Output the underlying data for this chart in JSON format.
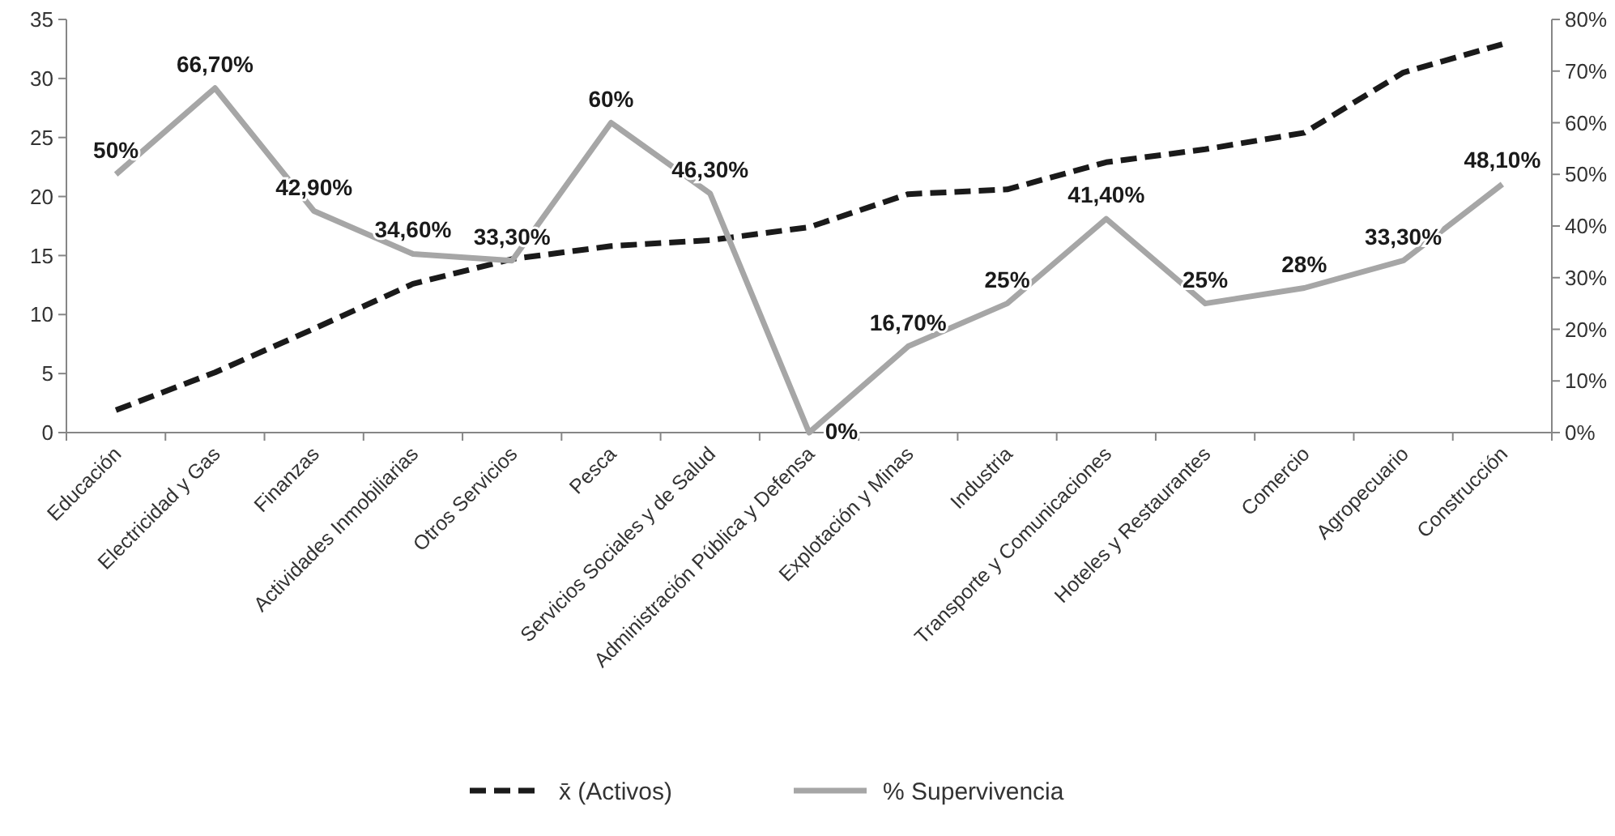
{
  "chart_data": {
    "type": "line",
    "categories": [
      "Educación",
      "Electricidad y Gas",
      "Finanzas",
      "Actividades Inmobiliarias",
      "Otros Servicios",
      "Pesca",
      "Servicios Sociales y de Salud",
      "Administración Pública y Defensa",
      "Explotación y Minas",
      "Industria",
      "Transporte y Comunicaciones",
      "Hoteles y Restaurantes",
      "Comercio",
      "Agropecuario",
      "Construcción"
    ],
    "series": [
      {
        "name": "x̄ (Activos)",
        "color": "#1a1a1a",
        "line_style": "dashed",
        "values": [
          1.9,
          5.1,
          8.8,
          12.6,
          14.7,
          15.8,
          16.3,
          17.4,
          20.2,
          20.6,
          22.9,
          24.0,
          25.4,
          30.5,
          32.9
        ]
      },
      {
        "name": "% Supervivencia",
        "color": "#a6a6a6",
        "line_style": "solid",
        "axis": "y2",
        "values": [
          50,
          66.7,
          42.9,
          34.6,
          33.3,
          60,
          46.3,
          0,
          16.7,
          25,
          41.4,
          25,
          28,
          33.3,
          48.1
        ],
        "value_labels": [
          "50%",
          "66,70%",
          "42,90%",
          "34,60%",
          "33,30%",
          "60%",
          "46,30%",
          "0%",
          "16,70%",
          "25%",
          "41,40%",
          "25%",
          "28%",
          "33,30%",
          "48,10%"
        ]
      }
    ],
    "ylim": [
      0,
      35
    ],
    "yticks": [
      0,
      5,
      10,
      15,
      20,
      25,
      30,
      35
    ],
    "y2lim": [
      0,
      80
    ],
    "y2ticks": [
      {
        "value": 0,
        "label": "0%"
      },
      {
        "value": 10,
        "label": "10%"
      },
      {
        "value": 20,
        "label": "20%"
      },
      {
        "value": 30,
        "label": "30%"
      },
      {
        "value": 40,
        "label": "40%"
      },
      {
        "value": 50,
        "label": "50%"
      },
      {
        "value": 60,
        "label": "60%"
      },
      {
        "value": 70,
        "label": "70%"
      },
      {
        "value": 80,
        "label": "80%"
      }
    ],
    "grid": false,
    "legend": "bottom",
    "marker": "none"
  }
}
